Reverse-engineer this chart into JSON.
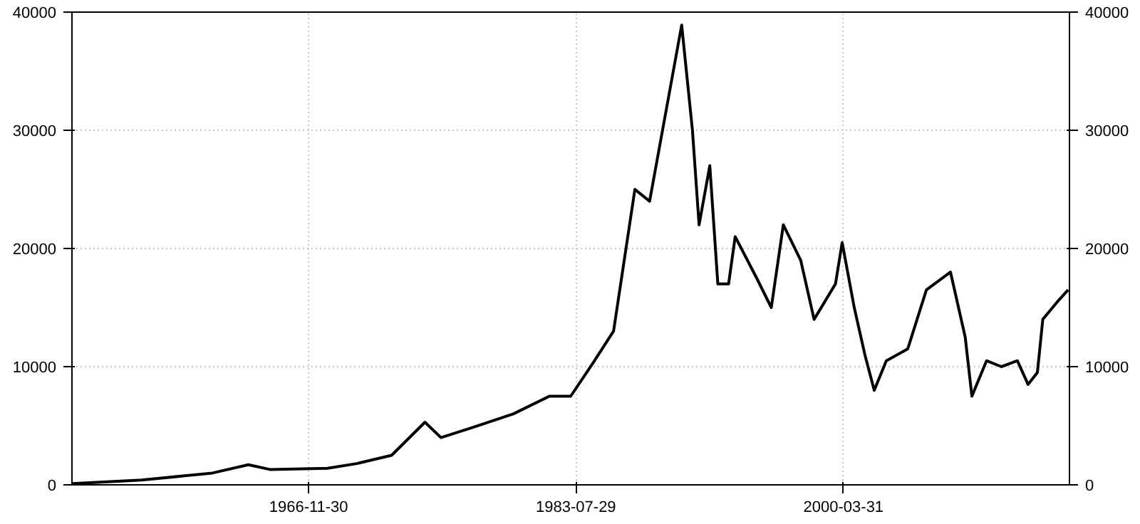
{
  "chart_data": {
    "type": "line",
    "x": [
      "1952-03",
      "1956-07",
      "1960-12",
      "1963-03",
      "1964-07",
      "1968-02",
      "1969-12",
      "1972-02",
      "1974-03",
      "1975-03",
      "1977-01",
      "1979-09",
      "1981-12",
      "1983-04",
      "1984-08",
      "1985-12",
      "1987-04",
      "1988-03",
      "1990-03",
      "1990-11",
      "1991-04",
      "1991-12",
      "1992-06",
      "1993-02",
      "1993-07",
      "1994-11",
      "1995-10",
      "1996-07",
      "1997-08",
      "1998-06",
      "1999-10",
      "2000-03",
      "2000-12",
      "2001-08",
      "2002-03",
      "2002-12",
      "2004-04",
      "2005-06",
      "2006-12",
      "2007-11",
      "2008-04",
      "2009-03",
      "2010-02",
      "2011-02",
      "2011-10",
      "2012-05",
      "2012-09",
      "2013-08",
      "2014-04"
    ],
    "series": [
      {
        "color": "#000000",
        "values": [
          100,
          400,
          1000,
          1700,
          1300,
          1400,
          1800,
          2500,
          5300,
          4000,
          4800,
          6000,
          7500,
          7500,
          10200,
          13000,
          25000,
          24000,
          38900,
          30000,
          22000,
          27000,
          17000,
          17000,
          21000,
          17500,
          15000,
          22000,
          19000,
          14000,
          17000,
          20500,
          15000,
          11000,
          8000,
          10500,
          11500,
          16500,
          18000,
          12500,
          7500,
          10500,
          10000,
          10500,
          8500,
          9500,
          14000,
          15500,
          16500
        ]
      }
    ],
    "xlim": [
      "1952-03-01",
      "2014-05-01"
    ],
    "xticks": [
      "1966-11-30",
      "1983-07-29",
      "2000-03-31"
    ],
    "ylim": [
      0,
      40000
    ],
    "yticks": [
      0,
      10000,
      20000,
      30000,
      40000
    ],
    "y2lim": [
      0,
      40000
    ],
    "y2ticks": [
      0,
      10000,
      20000,
      30000,
      40000
    ],
    "grid": true,
    "marker": "none",
    "line_style": "solid"
  }
}
